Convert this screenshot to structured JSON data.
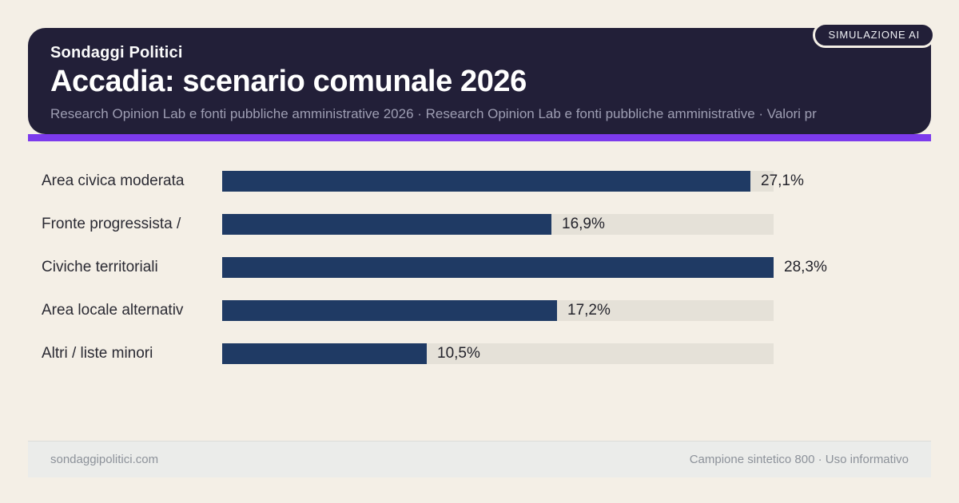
{
  "badge": {
    "label": "SIMULAZIONE AI"
  },
  "header": {
    "kicker": "Sondaggi Politici",
    "title": "Accadia: scenario comunale 2026",
    "subtitle": "Research Opinion Lab e fonti pubbliche amministrative 2026 · Research Opinion Lab e fonti pubbliche amministrative · Valori pr"
  },
  "chart_data": {
    "type": "bar",
    "orientation": "horizontal",
    "categories": [
      "Area civica moderata",
      "Fronte progressista /",
      "Civiche territoriali",
      "Area locale alternativ",
      "Altri / liste minori"
    ],
    "values": [
      27.1,
      16.9,
      28.3,
      17.2,
      10.5
    ],
    "value_labels": [
      "27,1%",
      "16,9%",
      "28,3%",
      "17,2%",
      "10,5%"
    ],
    "title": "Accadia: scenario comunale 2026",
    "xlabel": "",
    "ylabel": "",
    "xlim": [
      0,
      28.3
    ],
    "grid": false,
    "legend": false,
    "bar_color": "#1f3a64",
    "track_color": "#e5e1d8"
  },
  "footer": {
    "left": "sondaggipolitici.com",
    "right": "Campione sintetico 800 · Uso informativo"
  },
  "colors": {
    "page_background": "#f4efe6",
    "header_background": "#221f38",
    "accent": "#7c3aec",
    "bar": "#1f3a64",
    "bar_track": "#e5e1d8",
    "footer_background": "#ebecea"
  }
}
